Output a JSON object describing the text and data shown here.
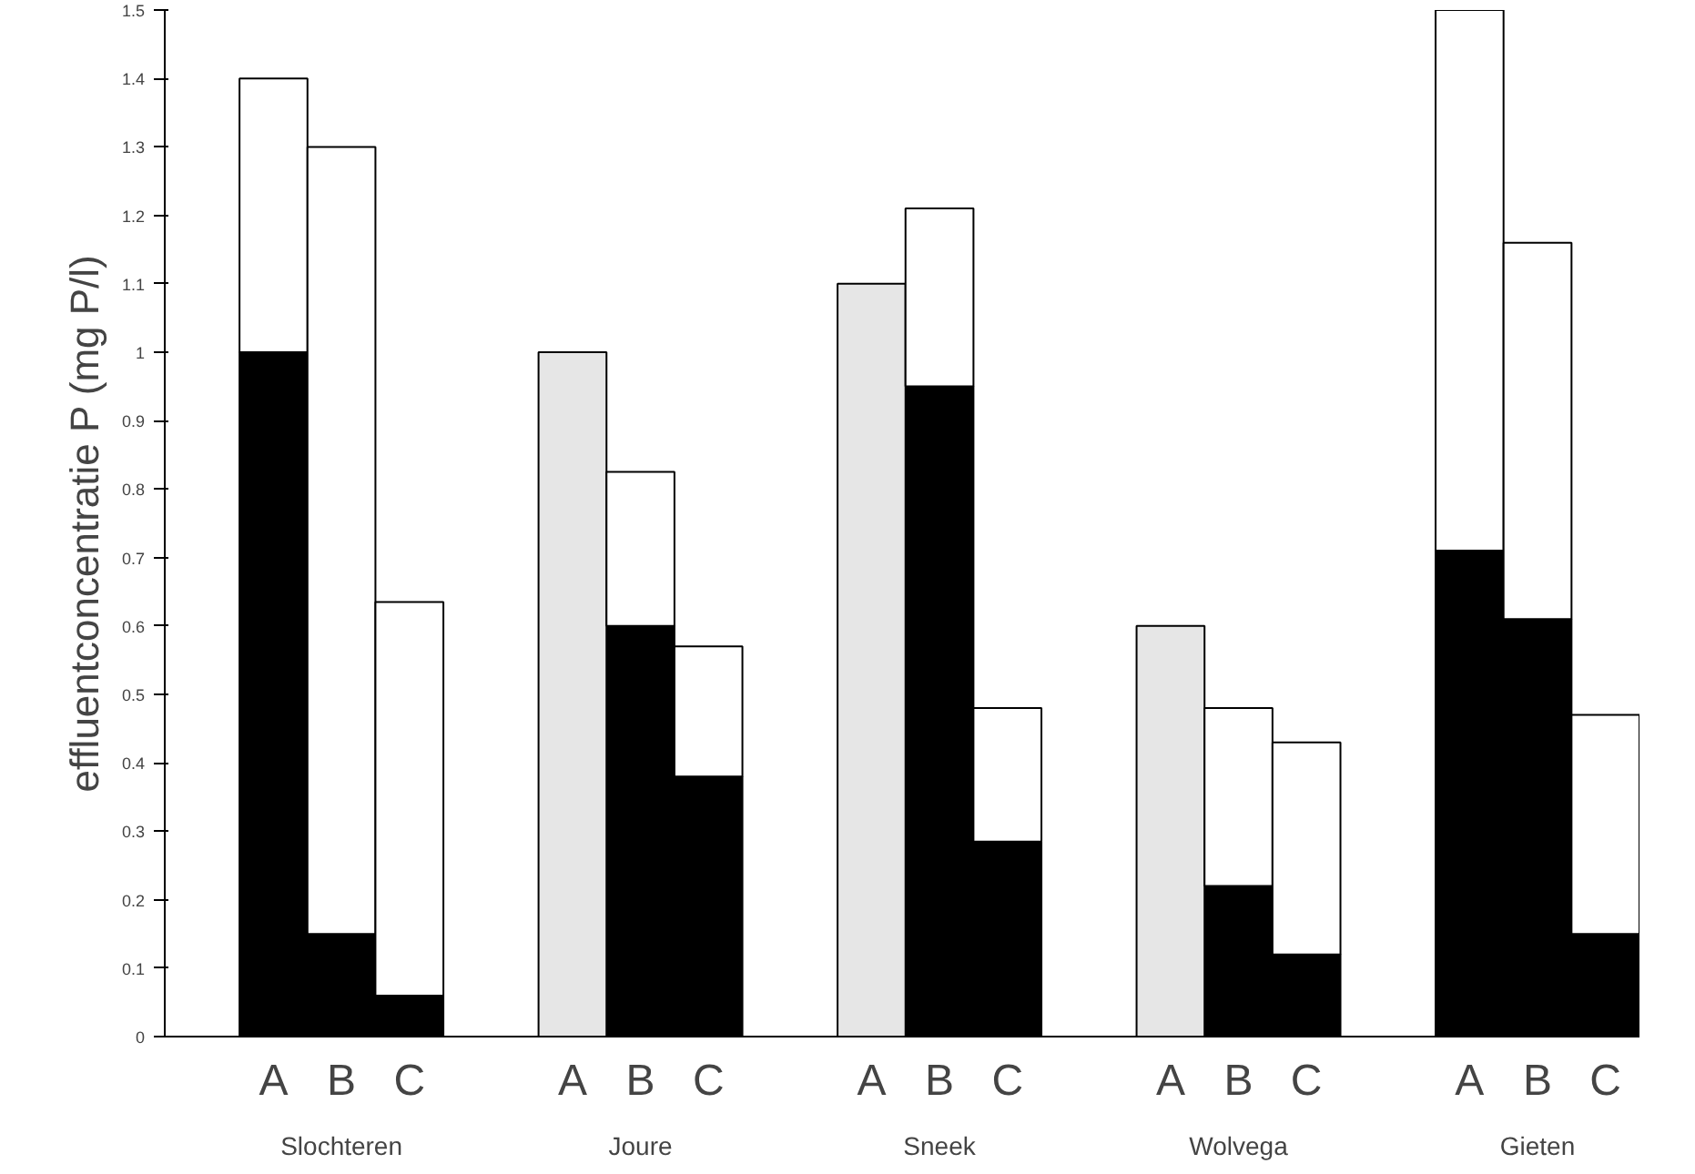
{
  "chart_data": {
    "type": "bar",
    "stacked": true,
    "ylabel": "effluentconcentratie P (mg P/l)",
    "categories": [
      "A",
      "B",
      "C",
      "A",
      "B",
      "C",
      "A",
      "B",
      "C",
      "A",
      "B",
      "C",
      "A",
      "B",
      "C"
    ],
    "series": [
      {
        "color": "#000000",
        "values": [
          1.0,
          0.15,
          0.06,
          null,
          0.6,
          0.38,
          null,
          0.95,
          0.285,
          null,
          0.22,
          0.12,
          0.71,
          0.61,
          0.15
        ]
      },
      {
        "color": "#e6e6e6",
        "values": [
          null,
          null,
          null,
          1.0,
          null,
          null,
          1.1,
          null,
          null,
          0.6,
          null,
          null,
          null,
          null,
          null
        ]
      },
      {
        "color": "#ffffff",
        "values": [
          0.4,
          1.15,
          0.575,
          null,
          0.225,
          0.19,
          null,
          0.26,
          0.195,
          null,
          0.26,
          0.31,
          0.79,
          0.55,
          0.32
        ]
      }
    ],
    "annotations": [
      "Slochteren",
      "Joure",
      "Sneek",
      "Wolvega",
      "Gieten"
    ],
    "ylim": [
      0,
      1.5
    ],
    "yticks": [
      0,
      0.1,
      0.2,
      0.3,
      0.4,
      0.5,
      0.6,
      0.7,
      0.8,
      0.9,
      1,
      1.1,
      1.2,
      1.3,
      1.4,
      1.5
    ],
    "grid": false
  }
}
